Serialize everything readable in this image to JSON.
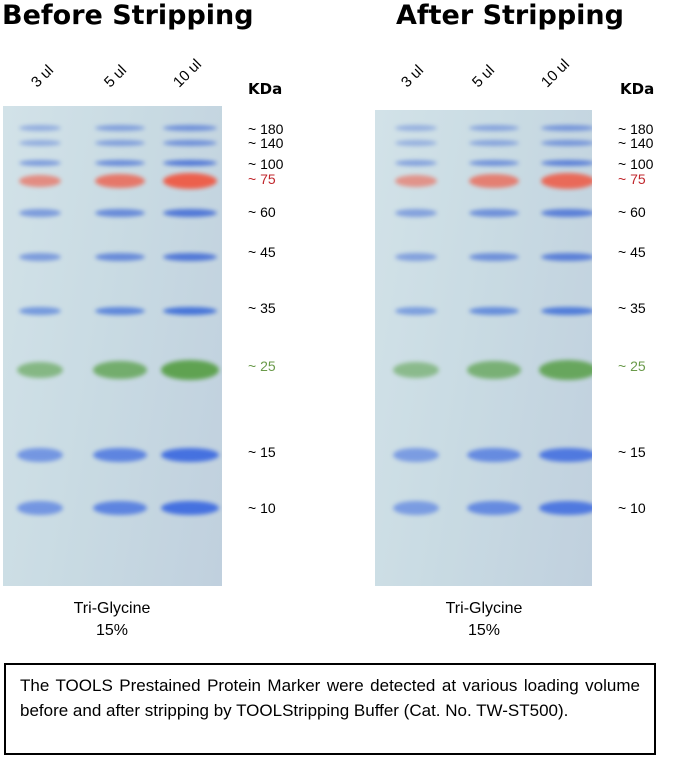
{
  "panels": [
    {
      "title": "Before Stripping",
      "lanes": [
        "3 ul",
        "5 ul",
        "10 ul"
      ],
      "unit_label": "KDa",
      "gel_type": "Tri-Glycine",
      "gel_percent": "15%"
    },
    {
      "title": "After Stripping",
      "lanes": [
        "3 ul",
        "5 ul",
        "10 ul"
      ],
      "unit_label": "KDa",
      "gel_type": "Tri-Glycine",
      "gel_percent": "15%"
    }
  ],
  "markers": [
    {
      "label": "~ 180",
      "color": "#000000",
      "band_color": "#4a72d6"
    },
    {
      "label": "~ 140",
      "color": "#000000",
      "band_color": "#4a72d6"
    },
    {
      "label": "~ 100",
      "color": "#000000",
      "band_color": "#4a72d6"
    },
    {
      "label": "~ 75",
      "color": "#c0272d",
      "band_color": "#ef5a45"
    },
    {
      "label": "~ 60",
      "color": "#000000",
      "band_color": "#4a72d6"
    },
    {
      "label": "~ 45",
      "color": "#000000",
      "band_color": "#4a72d6"
    },
    {
      "label": "~ 35",
      "color": "#000000",
      "band_color": "#3f6fd8"
    },
    {
      "label": "~ 25",
      "color": "#6a9a4a",
      "band_color": "#5aa04a"
    },
    {
      "label": "~ 15",
      "color": "#000000",
      "band_color": "#3f6ce0"
    },
    {
      "label": "~ 10",
      "color": "#000000",
      "band_color": "#3f6ce0"
    }
  ],
  "lane_intensity": [
    0.45,
    0.7,
    1.0
  ],
  "caption": "The TOOLS Prestained Protein Marker were detected at various loading volume before and after stripping by TOOLStripping Buffer (Cat. No. TW-ST500)."
}
